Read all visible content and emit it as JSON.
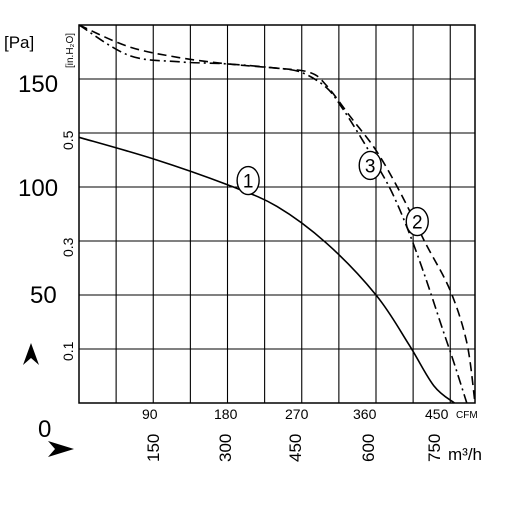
{
  "chart_data": {
    "type": "line",
    "x_label": "CFM",
    "x_label_secondary": "m³/h",
    "y_label": "[Pa]",
    "y_label_secondary": "[in.H₂O]",
    "x_ticks_cfm": [
      "90",
      "180",
      "270",
      "360",
      "450"
    ],
    "x_ticks_m3h": [
      "150",
      "300",
      "450",
      "600",
      "750"
    ],
    "y_ticks_pa": [
      "0",
      "50",
      "100",
      "150"
    ],
    "y_ticks_inh2o": [
      "0.1",
      "0.3",
      "0.5"
    ],
    "x_range_cfm": [
      0,
      480
    ],
    "y_range_pa": [
      0,
      175
    ],
    "grid": true,
    "series": [
      {
        "name": "1",
        "x": [
          0,
          90,
          180,
          240,
          300,
          360,
          400,
          430,
          455
        ],
        "y": [
          123,
          113,
          101,
          91,
          74,
          50,
          27,
          8,
          0
        ]
      },
      {
        "name": "2",
        "x": [
          0,
          60,
          120,
          180,
          240,
          280,
          300,
          330,
          360,
          390,
          420,
          450,
          470,
          480
        ],
        "y": [
          175,
          165,
          160,
          157,
          155,
          153,
          147,
          132,
          117,
          97,
          74,
          52,
          28,
          0
        ]
      },
      {
        "name": "3",
        "x": [
          0,
          60,
          120,
          180,
          240,
          270,
          300,
          320,
          340,
          360,
          380,
          400,
          420,
          440,
          455,
          470
        ],
        "y": [
          175,
          161,
          158,
          157,
          155,
          153,
          146,
          136,
          124,
          111,
          97,
          79,
          58,
          35,
          18,
          0
        ]
      }
    ],
    "series_labels": [
      "1",
      "2",
      "3"
    ]
  }
}
